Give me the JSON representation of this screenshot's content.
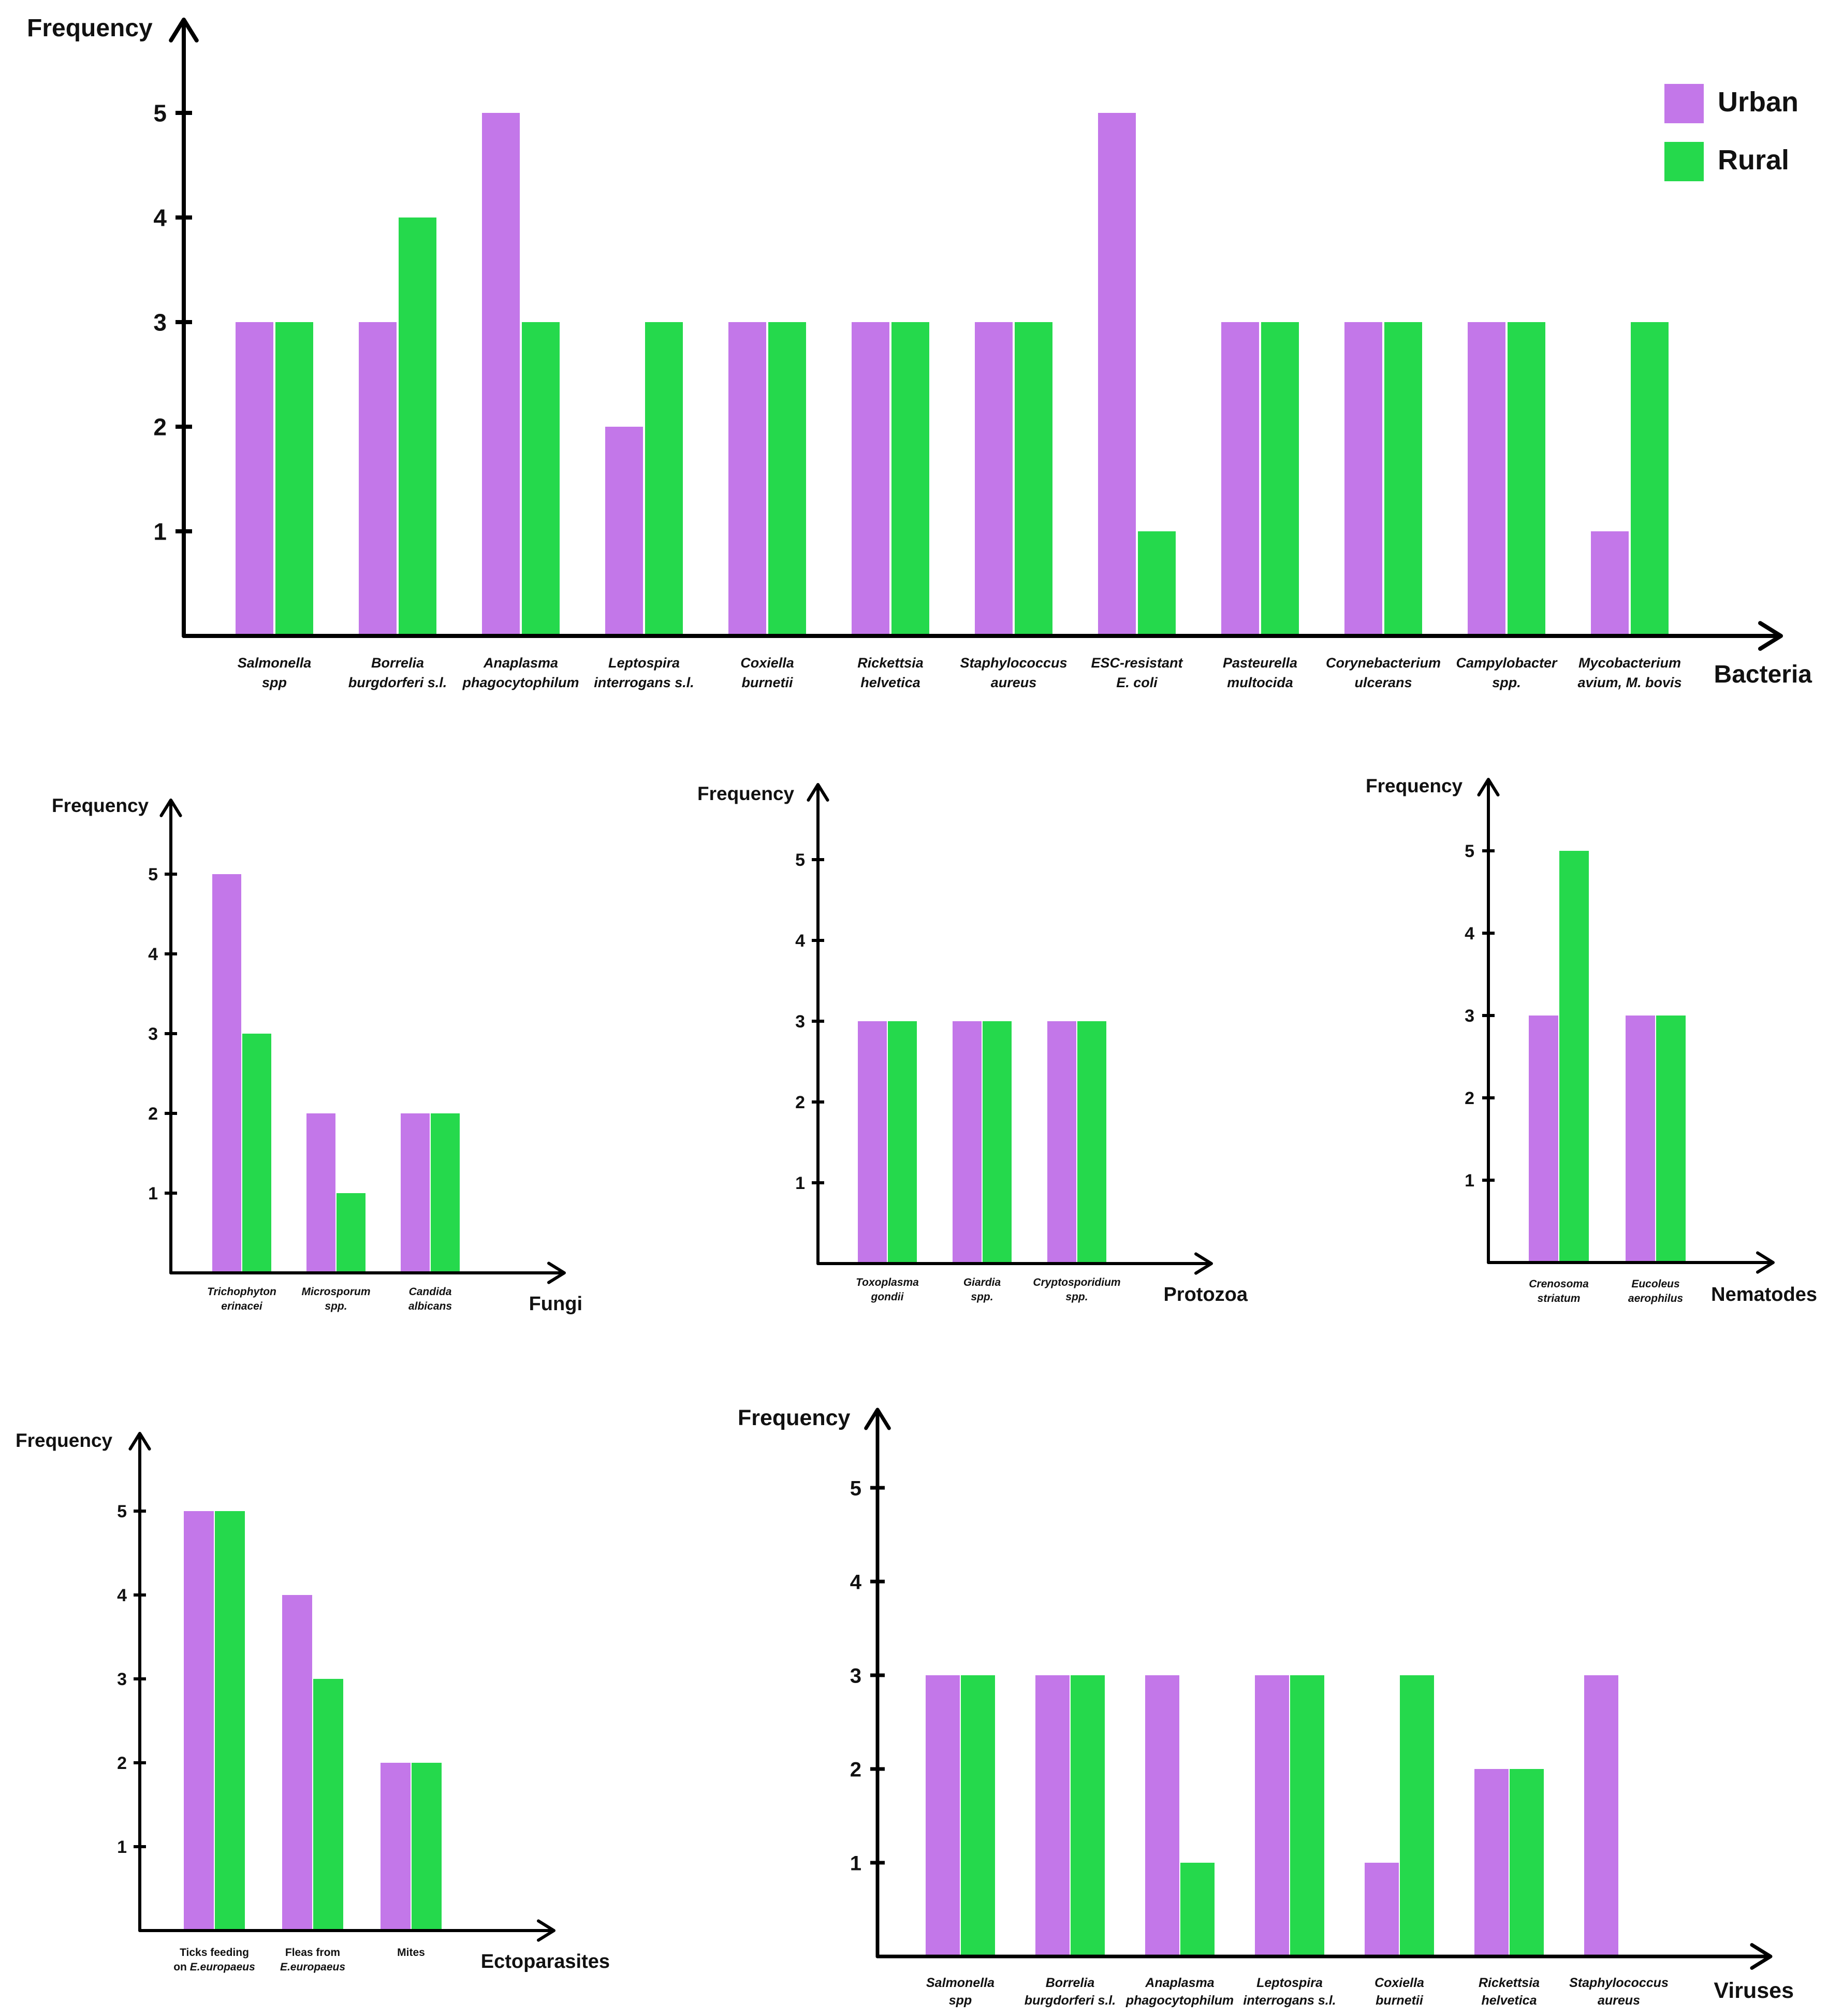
{
  "colors": {
    "urban": "#c377e9",
    "rural": "#25d94c",
    "axis": "#000000"
  },
  "legend": [
    {
      "label": "Urban",
      "color": "#c377e9"
    },
    {
      "label": "Rural",
      "color": "#25d94c"
    }
  ],
  "chart_data": [
    {
      "id": "bacteria",
      "type": "bar",
      "ylabel": "Frequency",
      "xlabel": "Bacteria",
      "ylim": [
        0,
        5.6
      ],
      "yticks": [
        1,
        2,
        3,
        4,
        5
      ],
      "categories": [
        [
          "Salmonella",
          "spp"
        ],
        [
          "Borrelia",
          "burgdorferi s.l."
        ],
        [
          "Anaplasma",
          "phagocytophilum"
        ],
        [
          "Leptospira",
          "interrogans s.l."
        ],
        [
          "Coxiella",
          "burnetii"
        ],
        [
          "Rickettsia",
          "helvetica"
        ],
        [
          "Staphylococcus",
          "aureus"
        ],
        [
          "ESC-resistant",
          "E. coli"
        ],
        [
          "Pasteurella",
          "multocida"
        ],
        [
          "Corynebacterium",
          "ulcerans"
        ],
        [
          "Campylobacter",
          "spp."
        ],
        [
          "Mycobacterium",
          "avium, M. bovis"
        ]
      ],
      "series": [
        {
          "name": "Urban",
          "values": [
            3,
            3,
            5,
            2,
            3,
            3,
            3,
            5,
            3,
            3,
            3,
            1
          ]
        },
        {
          "name": "Rural",
          "values": [
            3,
            4,
            3,
            3,
            3,
            3,
            3,
            1,
            3,
            3,
            3,
            3
          ]
        }
      ]
    },
    {
      "id": "fungi",
      "type": "bar",
      "ylabel": "Frequency",
      "xlabel": "Fungi",
      "ylim": [
        0,
        5.6
      ],
      "yticks": [
        1,
        2,
        3,
        4,
        5
      ],
      "categories": [
        [
          "Trichophyton",
          "erinacei"
        ],
        [
          "Microsporum",
          "spp."
        ],
        [
          "Candida",
          "albicans"
        ]
      ],
      "series": [
        {
          "name": "Urban",
          "values": [
            5,
            2,
            2
          ]
        },
        {
          "name": "Rural",
          "values": [
            3,
            1,
            2
          ]
        }
      ]
    },
    {
      "id": "protozoa",
      "type": "bar",
      "ylabel": "Frequency",
      "xlabel": "Protozoa",
      "ylim": [
        0,
        5.6
      ],
      "yticks": [
        1,
        2,
        3,
        4,
        5
      ],
      "categories": [
        [
          "Toxoplasma",
          "gondii"
        ],
        [
          "Giardia",
          "spp."
        ],
        [
          "Cryptosporidium",
          "spp."
        ]
      ],
      "series": [
        {
          "name": "Urban",
          "values": [
            3,
            3,
            3
          ]
        },
        {
          "name": "Rural",
          "values": [
            3,
            3,
            3
          ]
        }
      ]
    },
    {
      "id": "nematodes",
      "type": "bar",
      "ylabel": "Frequency",
      "xlabel": "Nematodes",
      "ylim": [
        0,
        5.6
      ],
      "yticks": [
        1,
        2,
        3,
        4,
        5
      ],
      "categories": [
        [
          "Crenosoma",
          "striatum"
        ],
        [
          "Eucoleus",
          "aerophilus"
        ]
      ],
      "series": [
        {
          "name": "Urban",
          "values": [
            3,
            3
          ]
        },
        {
          "name": "Rural",
          "values": [
            5,
            3
          ]
        }
      ]
    },
    {
      "id": "ectoparasites",
      "type": "bar",
      "ylabel": "Frequency",
      "xlabel": "Ectoparasites",
      "ylim": [
        0,
        5.6
      ],
      "yticks": [
        1,
        2,
        3,
        4,
        5
      ],
      "categories": [
        [
          "Ticks feeding",
          "on E.europaeus"
        ],
        [
          "Fleas from",
          "E.europaeus"
        ],
        [
          "Mites"
        ]
      ],
      "series": [
        {
          "name": "Urban",
          "values": [
            5,
            4,
            2
          ]
        },
        {
          "name": "Rural",
          "values": [
            5,
            3,
            2
          ]
        }
      ]
    },
    {
      "id": "viruses",
      "type": "bar",
      "ylabel": "Frequency",
      "xlabel": "Viruses",
      "ylim": [
        0,
        5.6
      ],
      "yticks": [
        1,
        2,
        3,
        4,
        5
      ],
      "categories": [
        [
          "Salmonella",
          "spp"
        ],
        [
          "Borrelia",
          "burgdorferi s.l."
        ],
        [
          "Anaplasma",
          "phagocytophilum"
        ],
        [
          "Leptospira",
          "interrogans s.l."
        ],
        [
          "Coxiella",
          "burnetii"
        ],
        [
          "Rickettsia",
          "helvetica"
        ],
        [
          "Staphylococcus",
          "aureus"
        ]
      ],
      "series": [
        {
          "name": "Urban",
          "values": [
            3,
            3,
            3,
            3,
            1,
            2,
            3
          ]
        },
        {
          "name": "Rural",
          "values": [
            3,
            3,
            1,
            3,
            3,
            2,
            0
          ]
        }
      ]
    }
  ]
}
